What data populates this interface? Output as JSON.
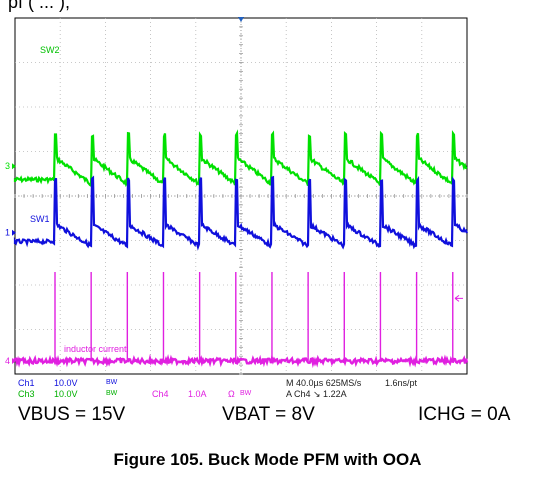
{
  "header_fragment": "pf (  ...  ),",
  "chart_data": {
    "type": "line",
    "title": "",
    "grid": true,
    "x_divisions": 10,
    "y_divisions": 8,
    "time_per_div": "40.0µs",
    "switching_period_us": 32,
    "series": [
      {
        "name": "SW2",
        "channel": "Ch3",
        "color": "#00e000",
        "scale": "10.0V",
        "bw": "BW",
        "ground_marker": "3",
        "pulse_rise_div": 1.1,
        "baseline_start_div": 0.6,
        "baseline_end_div": 0.0,
        "noise": "moderate"
      },
      {
        "name": "SW1",
        "channel": "Ch1",
        "color": "#1010dc",
        "scale": "10.0V",
        "bw": "BW",
        "ground_marker": "1",
        "pulse_rise_div": 1.6,
        "baseline_start_div": 0.6,
        "baseline_end_div": 0.1,
        "noise": "moderate"
      },
      {
        "name": "inductor current",
        "channel": "Ch4",
        "color": "#e020e0",
        "scale": "1.0A",
        "bw": "BW",
        "impedance_symbol": "Ω",
        "ground_marker": "4",
        "spike_div": 2.0,
        "baseline_div": 0.0,
        "noise": "high"
      }
    ],
    "readouts": {
      "ch1_label": "Ch1",
      "ch1_scale": "10.0V",
      "ch3_label": "Ch3",
      "ch3_scale": "10.0V",
      "ch4_label": "Ch4",
      "ch4_scale": "1.0A",
      "ohm_symbol": "Ω",
      "bw": "BW",
      "timebase": "M 40.0µs 625MS/s",
      "sample_pt": "1.6ns/pt",
      "trigger": "A  Ch4  ↘  1.22A"
    }
  },
  "conditions": {
    "vbus": "VBUS = 15V",
    "vbat": "VBAT = 8V",
    "ichg": "ICHG = 0A"
  },
  "caption": "Figure 105. Buck Mode PFM with OOA",
  "colors": {
    "sw2": "#00e000",
    "sw1": "#1010dc",
    "current": "#e020e0",
    "grid": "#b8b8b8",
    "frame": "#000000"
  }
}
